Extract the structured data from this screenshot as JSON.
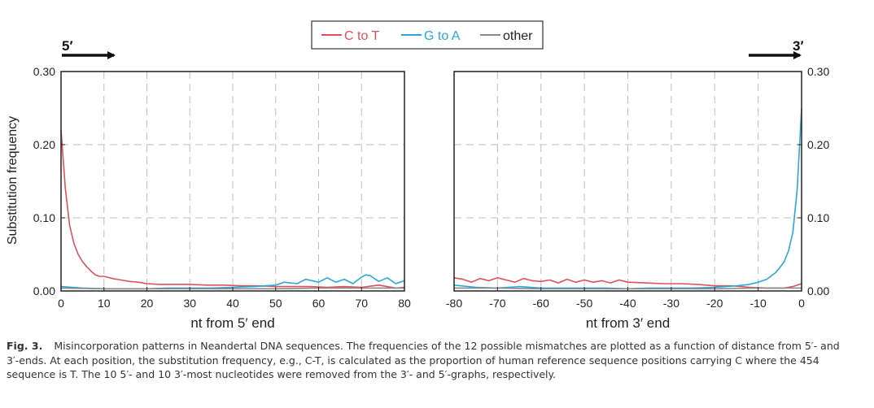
{
  "legend": {
    "items": [
      {
        "label": "C to T",
        "color": "#e0505a"
      },
      {
        "label": "G to A",
        "color": "#2aa7d8"
      },
      {
        "label": "other",
        "color": "#8a8a8a"
      }
    ]
  },
  "end_labels": {
    "left": "5′",
    "right": "3′"
  },
  "chart_data": [
    {
      "type": "line",
      "xlabel": "nt from 5′ end",
      "ylabel": "Substitution frequency",
      "xlim": [
        0,
        80
      ],
      "ylim": [
        0,
        0.3
      ],
      "xticks": [
        0,
        10,
        20,
        30,
        40,
        50,
        60,
        70,
        80
      ],
      "yticks": [
        0.0,
        0.1,
        0.2,
        0.3
      ],
      "ytick_labels": [
        "0.00",
        "0.10",
        "0.20",
        "0.30"
      ],
      "grid": true,
      "legend_position": "top-center",
      "series": [
        {
          "name": "C to T",
          "color": "#e0505a",
          "x": [
            0,
            1,
            2,
            3,
            4,
            5,
            6,
            7,
            8,
            9,
            10,
            12,
            14,
            16,
            18,
            20,
            23,
            26,
            30,
            34,
            38,
            42,
            46,
            50,
            54,
            58,
            62,
            66,
            70,
            74,
            78,
            80
          ],
          "y": [
            0.22,
            0.14,
            0.09,
            0.065,
            0.05,
            0.04,
            0.033,
            0.027,
            0.022,
            0.02,
            0.02,
            0.017,
            0.015,
            0.013,
            0.012,
            0.01,
            0.009,
            0.009,
            0.009,
            0.008,
            0.008,
            0.007,
            0.007,
            0.006,
            0.006,
            0.006,
            0.005,
            0.006,
            0.005,
            0.008,
            0.004,
            0.005
          ]
        },
        {
          "name": "G to A",
          "color": "#2aa7d8",
          "x": [
            0,
            5,
            10,
            15,
            20,
            25,
            30,
            35,
            40,
            45,
            50,
            52,
            55,
            57,
            60,
            62,
            64,
            66,
            68,
            70,
            71,
            72,
            74,
            76,
            78,
            80
          ],
          "y": [
            0.006,
            0.004,
            0.003,
            0.003,
            0.003,
            0.004,
            0.004,
            0.004,
            0.005,
            0.006,
            0.008,
            0.012,
            0.01,
            0.016,
            0.012,
            0.018,
            0.012,
            0.016,
            0.01,
            0.019,
            0.022,
            0.021,
            0.013,
            0.018,
            0.01,
            0.014
          ]
        },
        {
          "name": "other",
          "color": "#8a8a8a",
          "x": [
            0,
            10,
            20,
            30,
            40,
            50,
            60,
            70,
            80
          ],
          "y": [
            0.004,
            0.003,
            0.003,
            0.003,
            0.003,
            0.003,
            0.004,
            0.004,
            0.004
          ]
        }
      ]
    },
    {
      "type": "line",
      "xlabel": "nt from 3′ end",
      "ylabel": "",
      "xlim": [
        -80,
        0
      ],
      "ylim": [
        0,
        0.3
      ],
      "xticks": [
        -80,
        -70,
        -60,
        -50,
        -40,
        -30,
        -20,
        -10,
        0
      ],
      "yticks": [
        0.0,
        0.1,
        0.2,
        0.3
      ],
      "ytick_labels": [
        "0.00",
        "0.10",
        "0.20",
        "0.30"
      ],
      "grid": true,
      "series": [
        {
          "name": "C to T",
          "color": "#e0505a",
          "x": [
            -80,
            -78,
            -76,
            -74,
            -72,
            -70,
            -68,
            -66,
            -64,
            -62,
            -60,
            -58,
            -56,
            -54,
            -52,
            -50,
            -48,
            -46,
            -44,
            -42,
            -40,
            -36,
            -32,
            -28,
            -24,
            -20,
            -16,
            -12,
            -8,
            -4,
            -2,
            0
          ],
          "y": [
            0.018,
            0.016,
            0.012,
            0.017,
            0.014,
            0.018,
            0.015,
            0.012,
            0.017,
            0.014,
            0.013,
            0.015,
            0.011,
            0.016,
            0.012,
            0.015,
            0.012,
            0.014,
            0.011,
            0.015,
            0.012,
            0.011,
            0.01,
            0.01,
            0.009,
            0.007,
            0.007,
            0.005,
            0.004,
            0.004,
            0.006,
            0.01
          ]
        },
        {
          "name": "G to A",
          "color": "#2aa7d8",
          "x": [
            -80,
            -75,
            -70,
            -65,
            -60,
            -55,
            -50,
            -45,
            -40,
            -35,
            -30,
            -25,
            -20,
            -15,
            -12,
            -10,
            -8,
            -6,
            -5,
            -4,
            -3,
            -2,
            -1,
            0
          ],
          "y": [
            0.008,
            0.005,
            0.004,
            0.006,
            0.004,
            0.004,
            0.004,
            0.004,
            0.003,
            0.004,
            0.004,
            0.004,
            0.005,
            0.007,
            0.009,
            0.012,
            0.016,
            0.025,
            0.032,
            0.04,
            0.055,
            0.08,
            0.14,
            0.25
          ]
        },
        {
          "name": "other",
          "color": "#8a8a8a",
          "x": [
            -80,
            -70,
            -60,
            -50,
            -40,
            -30,
            -20,
            -10,
            0
          ],
          "y": [
            0.004,
            0.004,
            0.003,
            0.003,
            0.003,
            0.003,
            0.003,
            0.004,
            0.004
          ]
        }
      ]
    }
  ],
  "caption": {
    "label": "Fig. 3.",
    "text": "Misincorporation patterns in Neandertal DNA sequences. The frequencies of the 12 possible mismatches are plotted as a function of distance from 5′- and 3′-ends. At each position, the substitution frequency, e.g., C-T, is calculated as the proportion of human reference sequence positions carrying C where the 454 sequence is T. The 10 5′- and 10 3′-most nucleotides were removed from the 3′- and 5′-graphs, respectively."
  }
}
